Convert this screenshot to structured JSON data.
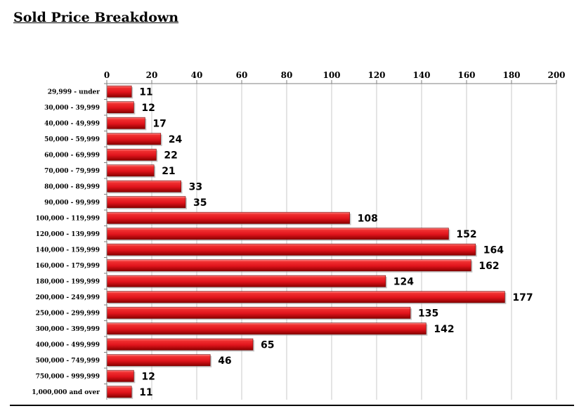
{
  "page": {
    "title": "Sold Price Breakdown"
  },
  "chart_data": {
    "type": "bar",
    "orientation": "horizontal",
    "title": "",
    "xlabel": "",
    "ylabel": "",
    "xlim": [
      0,
      200
    ],
    "ticks": [
      0,
      20,
      40,
      60,
      80,
      100,
      120,
      140,
      160,
      180,
      200
    ],
    "x_axis_position": "top",
    "grid": true,
    "legend": "none",
    "bar_color": "#e0141c",
    "categories": [
      "29,999 - under",
      "30,000 - 39,999",
      "40,000 - 49,999",
      "50,000 - 59,999",
      "60,000 - 69,999",
      "70,000 - 79,999",
      "80,000 - 89,999",
      "90,000 - 99,999",
      "100,000 - 119,999",
      "120,000 - 139,999",
      "140,000 - 159,999",
      "160,000 - 179,999",
      "180,000 - 199,999",
      "200,000 - 249,999",
      "250,000 - 299,999",
      "300,000 - 399,999",
      "400,000 - 499,999",
      "500,000 - 749,999",
      "750,000 - 999,999",
      "1,000,000 and over"
    ],
    "values": [
      11,
      12,
      17,
      24,
      22,
      21,
      33,
      35,
      108,
      152,
      164,
      162,
      124,
      177,
      135,
      142,
      65,
      46,
      12,
      11
    ]
  }
}
